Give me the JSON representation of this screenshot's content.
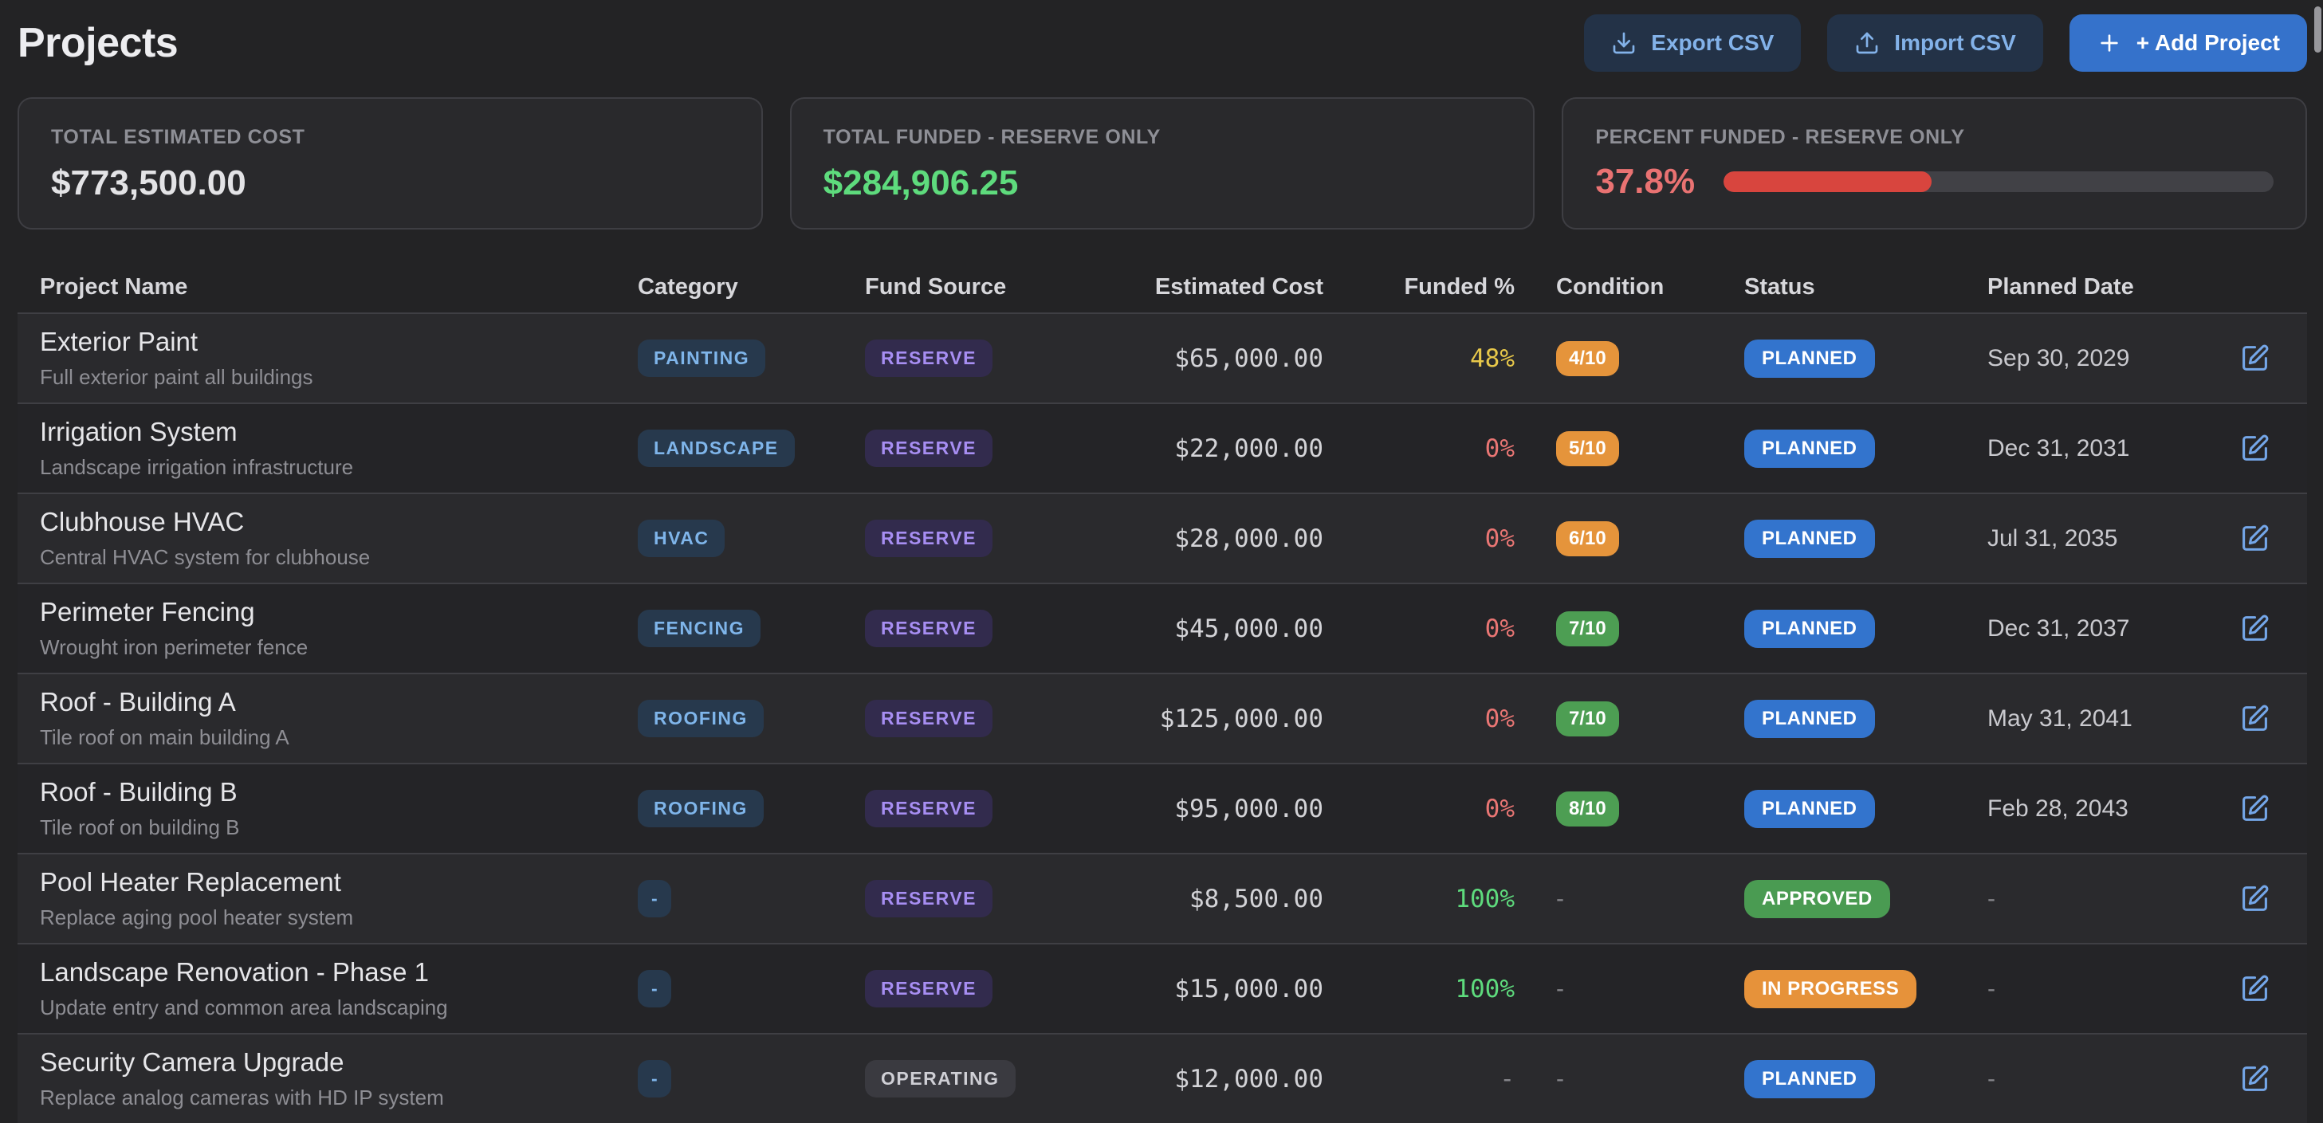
{
  "page": {
    "title": "Projects"
  },
  "toolbar": {
    "export_label": "Export CSV",
    "import_label": "Import CSV",
    "add_label": "+ Add Project"
  },
  "summary_cards": [
    {
      "label": "TOTAL ESTIMATED COST",
      "value": "$773,500.00"
    },
    {
      "label": "TOTAL FUNDED - RESERVE ONLY",
      "value": "$284,906.25"
    },
    {
      "label": "PERCENT FUNDED - RESERVE ONLY",
      "value": "37.8%",
      "progress_pct": 37.8
    }
  ],
  "colors": {
    "accent_blue": "#3572cb",
    "funded_green": "#5edb7d",
    "funded_red": "#ea7674",
    "funded_yellow": "#e8c84a",
    "percent_red": "#e97272",
    "progress_fill": "#d8453e",
    "condition_orange": "#e5943b",
    "condition_green": "#4d9e53",
    "status_planned_blue": "#3374cd",
    "status_approved_green": "#4a9b52",
    "status_inprogress_orange": "#e6923a",
    "category_badge_text": "#7fb5ea",
    "reserve_badge_text": "#a78ef2"
  },
  "table": {
    "columns": [
      "Project Name",
      "Category",
      "Fund Source",
      "Estimated Cost",
      "Funded %",
      "Condition",
      "Status",
      "Planned Date"
    ],
    "rows": [
      {
        "name": "Exterior Paint",
        "desc": "Full exterior paint all buildings",
        "category": "PAINTING",
        "fund": "RESERVE",
        "fund_tone": "reserve",
        "cost": "$65,000.00",
        "funded": "48%",
        "funded_state": "warn",
        "condition": "4/10",
        "condition_tone": "orange",
        "status": "PLANNED",
        "status_tone": "planned",
        "date": "Sep 30, 2029"
      },
      {
        "name": "Irrigation System",
        "desc": "Landscape irrigation infrastructure",
        "category": "LANDSCAPE",
        "fund": "RESERVE",
        "fund_tone": "reserve",
        "cost": "$22,000.00",
        "funded": "0%",
        "funded_state": "bad",
        "condition": "5/10",
        "condition_tone": "orange",
        "status": "PLANNED",
        "status_tone": "planned",
        "date": "Dec 31, 2031"
      },
      {
        "name": "Clubhouse HVAC",
        "desc": "Central HVAC system for clubhouse",
        "category": "HVAC",
        "fund": "RESERVE",
        "fund_tone": "reserve",
        "cost": "$28,000.00",
        "funded": "0%",
        "funded_state": "bad",
        "condition": "6/10",
        "condition_tone": "orange",
        "status": "PLANNED",
        "status_tone": "planned",
        "date": "Jul 31, 2035"
      },
      {
        "name": "Perimeter Fencing",
        "desc": "Wrought iron perimeter fence",
        "category": "FENCING",
        "fund": "RESERVE",
        "fund_tone": "reserve",
        "cost": "$45,000.00",
        "funded": "0%",
        "funded_state": "bad",
        "condition": "7/10",
        "condition_tone": "green",
        "status": "PLANNED",
        "status_tone": "planned",
        "date": "Dec 31, 2037"
      },
      {
        "name": "Roof - Building A",
        "desc": "Tile roof on main building A",
        "category": "ROOFING",
        "fund": "RESERVE",
        "fund_tone": "reserve",
        "cost": "$125,000.00",
        "funded": "0%",
        "funded_state": "bad",
        "condition": "7/10",
        "condition_tone": "green",
        "status": "PLANNED",
        "status_tone": "planned",
        "date": "May 31, 2041"
      },
      {
        "name": "Roof - Building B",
        "desc": "Tile roof on building B",
        "category": "ROOFING",
        "fund": "RESERVE",
        "fund_tone": "reserve",
        "cost": "$95,000.00",
        "funded": "0%",
        "funded_state": "bad",
        "condition": "8/10",
        "condition_tone": "green",
        "status": "PLANNED",
        "status_tone": "planned",
        "date": "Feb 28, 2043"
      },
      {
        "name": "Pool Heater Replacement",
        "desc": "Replace aging pool heater system",
        "category": "-",
        "fund": "RESERVE",
        "fund_tone": "reserve",
        "cost": "$8,500.00",
        "funded": "100%",
        "funded_state": "good",
        "condition": "-",
        "condition_tone": null,
        "status": "APPROVED",
        "status_tone": "approved",
        "date": "-"
      },
      {
        "name": "Landscape Renovation - Phase 1",
        "desc": "Update entry and common area landscaping",
        "category": "-",
        "fund": "RESERVE",
        "fund_tone": "reserve",
        "cost": "$15,000.00",
        "funded": "100%",
        "funded_state": "good",
        "condition": "-",
        "condition_tone": null,
        "status": "IN PROGRESS",
        "status_tone": "inprogress",
        "date": "-"
      },
      {
        "name": "Security Camera Upgrade",
        "desc": "Replace analog cameras with HD IP system",
        "category": "-",
        "fund": "OPERATING",
        "fund_tone": "operating",
        "cost": "$12,000.00",
        "funded": "-",
        "funded_state": "none",
        "condition": "-",
        "condition_tone": null,
        "status": "PLANNED",
        "status_tone": "planned",
        "date": "-"
      }
    ]
  }
}
